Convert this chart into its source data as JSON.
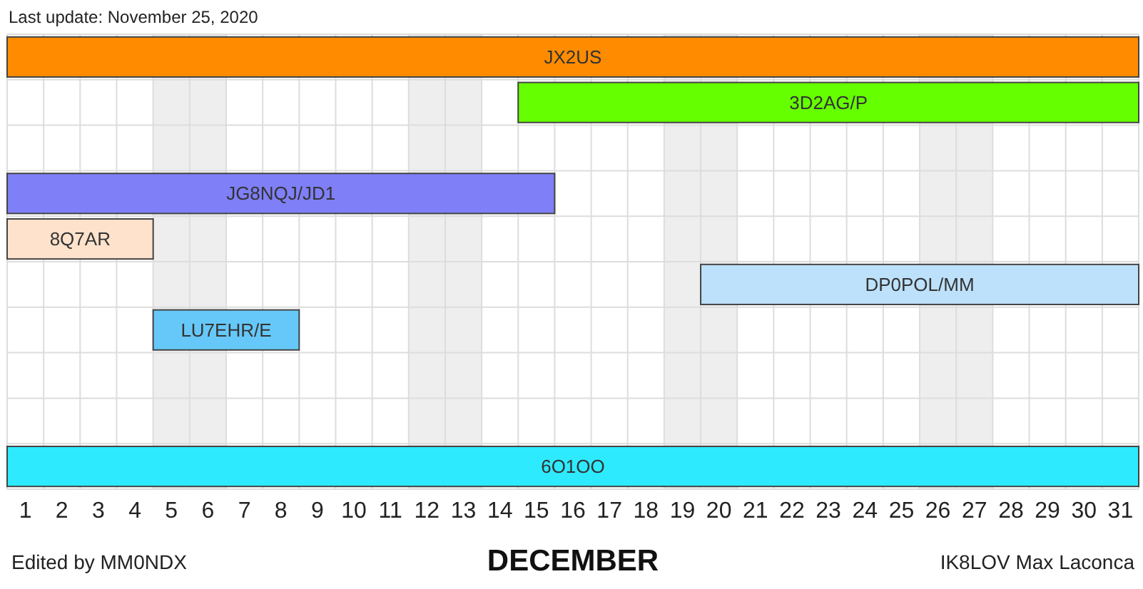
{
  "chart_data": {
    "type": "bar",
    "orientation": "horizontal",
    "xlabel": "DECEMBER",
    "annotations": [
      "Last update: November 25, 2020",
      "Edited by MM0NDX",
      "IK8LOV Max Laconca"
    ],
    "categories": [
      null,
      null,
      null,
      null,
      null,
      null,
      null,
      null,
      null,
      null
    ],
    "series": [
      {
        "name": "JX2US",
        "color": "#ff8c00",
        "values": [
          31,
          null,
          null,
          null,
          null,
          null,
          null,
          null,
          null,
          null
        ],
        "base": [
          0.5,
          null,
          null,
          null,
          null,
          null,
          null,
          null,
          null,
          null
        ]
      },
      {
        "name": "3D2AG/P",
        "color": "#66ff00",
        "values": [
          null,
          17,
          null,
          null,
          null,
          null,
          null,
          null,
          null,
          null
        ],
        "base": [
          null,
          14.5,
          null,
          null,
          null,
          null,
          null,
          null,
          null,
          null
        ]
      },
      {
        "name": "JG8NQJ/JD1",
        "color": "#7f7ff7",
        "values": [
          null,
          null,
          null,
          15,
          null,
          null,
          null,
          null,
          null,
          null
        ],
        "base": [
          null,
          null,
          null,
          0.5,
          null,
          null,
          null,
          null,
          null,
          null
        ]
      },
      {
        "name": "8Q7AR",
        "color": "#ffe2cc",
        "values": [
          null,
          null,
          null,
          null,
          4,
          null,
          null,
          null,
          null,
          null
        ],
        "base": [
          null,
          null,
          null,
          null,
          0.5,
          null,
          null,
          null,
          null,
          null
        ]
      },
      {
        "name": "DP0POL/MM",
        "color": "#bde1fb",
        "values": [
          null,
          null,
          null,
          null,
          null,
          12,
          null,
          null,
          null,
          null
        ],
        "base": [
          null,
          null,
          null,
          null,
          null,
          19.5,
          null,
          null,
          null,
          null
        ]
      },
      {
        "name": "LU7EHR/E",
        "color": "#66c8f8",
        "values": [
          null,
          null,
          null,
          null,
          null,
          null,
          4,
          null,
          null,
          null
        ],
        "base": [
          null,
          null,
          null,
          null,
          null,
          null,
          4.5,
          null,
          null,
          null
        ]
      },
      {
        "name": "6O1OO",
        "color": "#2eeaff",
        "values": [
          null,
          null,
          null,
          null,
          null,
          null,
          null,
          null,
          null,
          31
        ],
        "base": [
          null,
          null,
          null,
          null,
          null,
          null,
          null,
          null,
          null,
          0.5
        ]
      }
    ],
    "xlim": [
      0.5,
      31.5
    ],
    "xticks": [
      {
        "value": 0.5,
        "label": null
      },
      1,
      {
        "value": 1.5,
        "label": null
      },
      2,
      {
        "value": 2.5,
        "label": null
      },
      3,
      {
        "value": 3.5,
        "label": null
      },
      4,
      {
        "value": 4.5,
        "label": null
      },
      5,
      {
        "value": 5.5,
        "label": null
      },
      6,
      {
        "value": 6.5,
        "label": null
      },
      7,
      {
        "value": 7.5,
        "label": null
      },
      8,
      {
        "value": 8.5,
        "label": null
      },
      9,
      {
        "value": 9.5,
        "label": null
      },
      10,
      {
        "value": 10.5,
        "label": null
      },
      11,
      {
        "value": 11.5,
        "label": null
      },
      12,
      {
        "value": 12.5,
        "label": null
      },
      13,
      {
        "value": 13.5,
        "label": null
      },
      14,
      {
        "value": 14.5,
        "label": null
      },
      15,
      {
        "value": 15.5,
        "label": null
      },
      16,
      {
        "value": 16.5,
        "label": null
      },
      17,
      {
        "value": 17.5,
        "label": null
      },
      18,
      {
        "value": 18.5,
        "label": null
      },
      19,
      {
        "value": 19.5,
        "label": null
      },
      20,
      {
        "value": 20.5,
        "label": null
      },
      21,
      {
        "value": 21.5,
        "label": null
      },
      22,
      {
        "value": 22.5,
        "label": null
      },
      23,
      {
        "value": 23.5,
        "label": null
      },
      24,
      {
        "value": 24.5,
        "label": null
      },
      25,
      {
        "value": 25.5,
        "label": null
      },
      26,
      {
        "value": 26.5,
        "label": null
      },
      27,
      {
        "value": 27.5,
        "label": null
      },
      28,
      {
        "value": 28.5,
        "label": null
      },
      29,
      {
        "value": 29.5,
        "label": null
      },
      30,
      {
        "value": 30.5,
        "label": null
      },
      31,
      {
        "value": 31.5,
        "label": null
      }
    ],
    "bands": [
      {
        "axis": "x",
        "from": 4.5,
        "to": 6.5,
        "color": "#eeeeee"
      },
      {
        "axis": "x",
        "from": 11.5,
        "to": 13.5,
        "color": "#eeeeee"
      },
      {
        "axis": "x",
        "from": 18.5,
        "to": 20.5,
        "color": "#eeeeee"
      },
      {
        "axis": "x",
        "from": 25.5,
        "to": 27.5,
        "color": "#eeeeee"
      }
    ],
    "grid": true
  }
}
